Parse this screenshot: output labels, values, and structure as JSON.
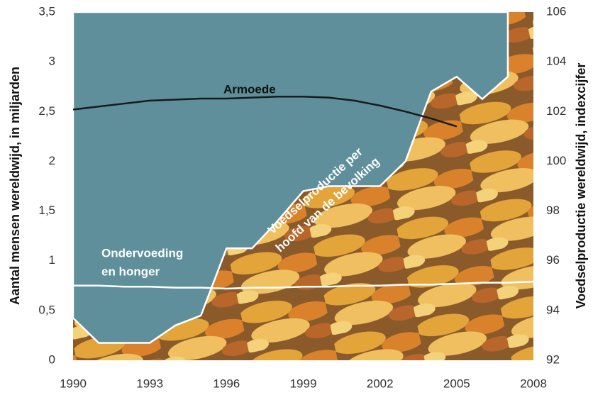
{
  "chart_data": {
    "type": "line",
    "y_label": "Aantal mensen wereldwijd, in miljarden",
    "y2_label": "Voedselproductie wereldwijd, indexcijfer",
    "annotations": [
      [
        "Armoede"
      ],
      [
        "Voedselproductie per",
        "hoofd van de bevolking"
      ],
      [
        "Ondervoeding",
        "en honger"
      ]
    ],
    "x": [
      1990,
      1991,
      1992,
      1993,
      1994,
      1995,
      1996,
      1997,
      1998,
      1999,
      2000,
      2001,
      2002,
      2003,
      2004,
      2005,
      2006,
      2007,
      2008
    ],
    "series": [
      {
        "color": "#5e8f9a",
        "axis": "y2",
        "fill": true,
        "values": [
          93.7,
          92.7,
          92.7,
          92.7,
          93.4,
          93.8,
          96.5,
          96.5,
          97.6,
          98.8,
          99.0,
          99.0,
          99.0,
          100.0,
          102.8,
          103.4,
          102.5,
          103.4,
          null
        ]
      },
      {
        "color": "#1a1a1a",
        "values": [
          2.52,
          2.55,
          2.58,
          2.61,
          2.62,
          2.63,
          2.63,
          2.64,
          2.65,
          2.65,
          2.64,
          2.61,
          2.56,
          2.5,
          2.43,
          2.35,
          null,
          null,
          null
        ]
      },
      {
        "color": "#ffffff",
        "values": [
          0.75,
          0.75,
          0.74,
          0.74,
          0.73,
          0.73,
          0.72,
          0.73,
          0.73,
          0.74,
          0.74,
          0.75,
          0.75,
          0.76,
          0.76,
          0.77,
          0.78,
          0.78,
          0.79
        ]
      }
    ],
    "xlim": [
      1990,
      2008
    ],
    "xticks": [
      1990,
      1993,
      1996,
      1999,
      2002,
      2005,
      2008
    ],
    "ylim": [
      0,
      3.5
    ],
    "yticks": [
      0,
      {
        "value": 0.5,
        "label": "0,5"
      },
      1,
      {
        "value": 1.5,
        "label": "1,5"
      },
      2,
      {
        "value": 2.5,
        "label": "2,5"
      },
      3,
      {
        "value": 3.5,
        "label": "3,5"
      }
    ],
    "y2lim": [
      92,
      106
    ],
    "y2ticks": [
      92,
      94,
      96,
      98,
      100,
      102,
      104,
      106
    ]
  }
}
